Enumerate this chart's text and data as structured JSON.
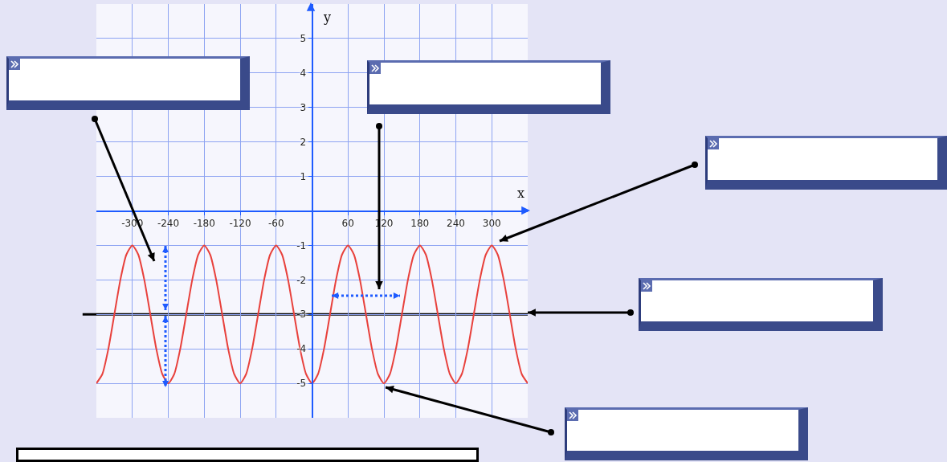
{
  "chart_data": {
    "type": "line",
    "xlabel": "x",
    "ylabel": "y",
    "x": [
      -360,
      -350,
      -340,
      -330,
      -320,
      -310,
      -300,
      -290,
      -280,
      -270,
      -260,
      -250,
      -240,
      -230,
      -220,
      -210,
      -200,
      -190,
      -180,
      -170,
      -160,
      -150,
      -140,
      -130,
      -120,
      -110,
      -100,
      -90,
      -80,
      -70,
      -60,
      -50,
      -40,
      -30,
      -20,
      -10,
      0,
      10,
      20,
      30,
      40,
      50,
      60,
      70,
      80,
      90,
      100,
      110,
      120,
      130,
      140,
      150,
      160,
      170,
      180,
      190,
      200,
      210,
      220,
      230,
      240,
      250,
      260,
      270,
      280,
      290,
      300,
      310,
      320,
      330,
      340,
      350,
      360
    ],
    "series": [
      {
        "color": "#e8413c",
        "values": [
          -5,
          -4.73,
          -4,
          -3,
          -2,
          -1.27,
          -1,
          -1.27,
          -2,
          -3,
          -4,
          -4.73,
          -5,
          -4.73,
          -4,
          -3,
          -2,
          -1.27,
          -1,
          -1.27,
          -2,
          -3,
          -4,
          -4.73,
          -5,
          -4.73,
          -4,
          -3,
          -2,
          -1.27,
          -1,
          -1.27,
          -2,
          -3,
          -4,
          -4.73,
          -5,
          -4.73,
          -4,
          -3,
          -2,
          -1.27,
          -1,
          -1.27,
          -2,
          -3,
          -4,
          -4.73,
          -5,
          -4.73,
          -4,
          -3,
          -2,
          -1.27,
          -1,
          -1.27,
          -2,
          -3,
          -4,
          -4.73,
          -5,
          -4.73,
          -4,
          -3,
          -2,
          -1.27,
          -1,
          -1.27,
          -2,
          -3,
          -4,
          -4.73,
          -5
        ]
      }
    ],
    "xlim": [
      -360,
      360
    ],
    "xticks": [
      -300,
      -240,
      -180,
      -120,
      -60,
      60,
      120,
      180,
      240,
      300
    ],
    "ylim": [
      -6,
      6
    ],
    "yticks": [
      -5,
      -4,
      -3,
      -2,
      -1,
      1,
      2,
      3,
      4,
      5
    ],
    "ref_lines": [
      {
        "axis": "y",
        "value": -3,
        "color": "#000000"
      }
    ],
    "grid": true,
    "marker": "none",
    "line_style": "solid"
  }
}
